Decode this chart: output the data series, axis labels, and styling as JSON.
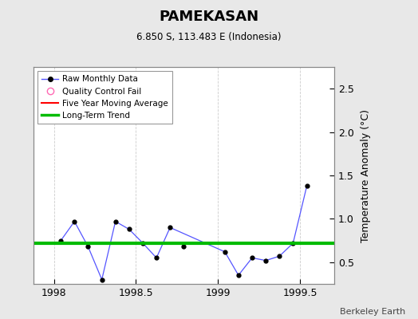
{
  "title": "PAMEKASAN",
  "subtitle": "6.850 S, 113.483 E (Indonesia)",
  "ylabel": "Temperature Anomaly (°C)",
  "credit": "Berkeley Earth",
  "xlim": [
    1997.875,
    1999.71
  ],
  "ylim": [
    0.25,
    2.75
  ],
  "yticks": [
    0.5,
    1.0,
    1.5,
    2.0,
    2.5
  ],
  "xticks": [
    1998.0,
    1998.5,
    1999.0,
    1999.5
  ],
  "xticklabels": [
    "1998",
    "1998.5",
    "1999",
    "1999.5"
  ],
  "raw_x": [
    1998.042,
    1998.125,
    1998.208,
    1998.292,
    1998.375,
    1998.458,
    1998.542,
    1998.625,
    1998.708,
    1999.042,
    1999.125,
    1999.208,
    1999.292,
    1999.375,
    1999.458,
    1999.542
  ],
  "raw_y": [
    0.75,
    0.97,
    0.68,
    0.3,
    0.97,
    0.88,
    0.72,
    0.55,
    0.9,
    0.62,
    0.35,
    0.55,
    0.52,
    0.57,
    0.72,
    1.38
  ],
  "isolated_x": [
    1998.792
  ],
  "isolated_y": [
    0.68
  ],
  "long_term_trend_y": 0.72,
  "five_year_avg_y": 0.72,
  "line_color": "#5555ff",
  "marker_color": "#000000",
  "trend_color": "#00bb00",
  "moving_avg_color": "#ff0000",
  "background_color": "#e8e8e8",
  "plot_bg_color": "#ffffff",
  "grid_color": "#cccccc"
}
